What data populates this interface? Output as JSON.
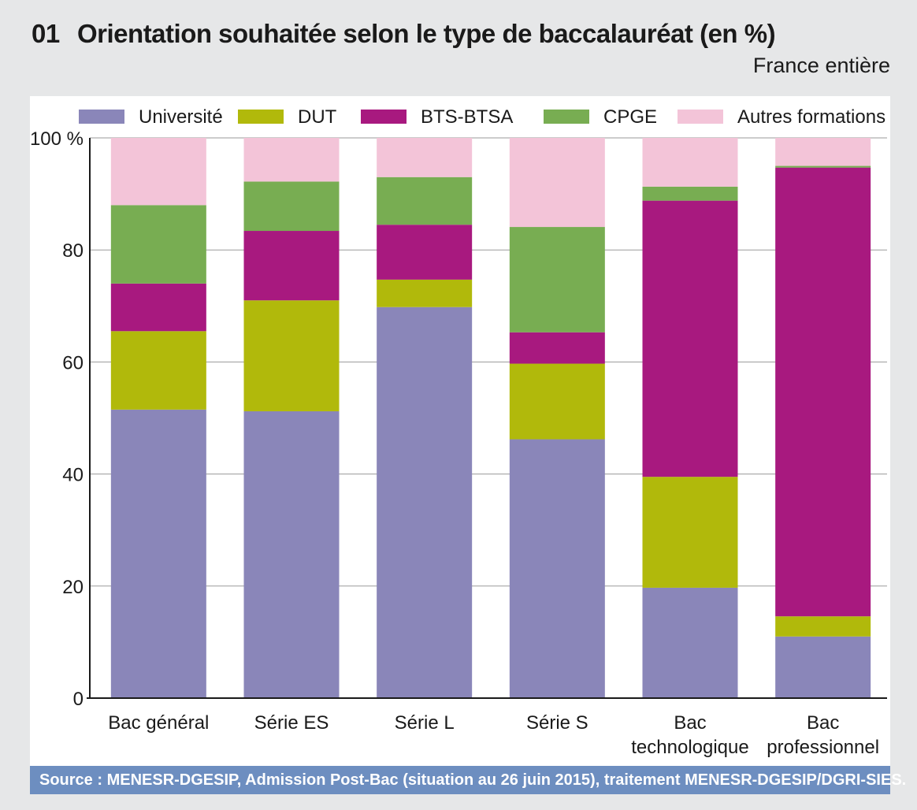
{
  "title_number": "01",
  "title": "Orientation souhaitée selon le type de baccalauréat (en %)",
  "subtitle": "France entière",
  "source": "Source : MENESR-DGESIP, Admission Post-Bac (situation au 26 juin 2015), traitement MENESR-DGESIP/DGRI-SIES.",
  "chart_data": {
    "type": "bar",
    "stacked": true,
    "title": "Orientation souhaitée selon le type de baccalauréat (en %)",
    "xlabel": "",
    "ylabel": "",
    "ylim": [
      0,
      100
    ],
    "y_ticks": [
      "0",
      "20",
      "40",
      "60",
      "80",
      "100 %"
    ],
    "categories": [
      [
        "Bac général"
      ],
      [
        "Série ES"
      ],
      [
        "Série L"
      ],
      [
        "Série S"
      ],
      [
        "Bac",
        "technologique"
      ],
      [
        "Bac",
        "professionnel"
      ]
    ],
    "legend_position": "top",
    "series": [
      {
        "name": "Université",
        "color": "#8a86b9",
        "values": [
          51.5,
          51.2,
          69.8,
          46.2,
          19.7,
          11.0
        ]
      },
      {
        "name": "DUT",
        "color": "#b1b90b",
        "values": [
          14.0,
          19.8,
          4.9,
          13.5,
          19.8,
          3.6
        ]
      },
      {
        "name": "BTS-BTSA",
        "color": "#a8197f",
        "values": [
          8.5,
          12.4,
          9.8,
          5.6,
          49.3,
          80.1
        ]
      },
      {
        "name": "CPGE",
        "color": "#78ad52",
        "values": [
          14.0,
          8.8,
          8.5,
          18.8,
          2.5,
          0.3
        ]
      },
      {
        "name": "Autres formations",
        "color": "#f3c4d8",
        "values": [
          12.0,
          7.8,
          7.0,
          15.9,
          8.7,
          5.0
        ]
      }
    ]
  }
}
